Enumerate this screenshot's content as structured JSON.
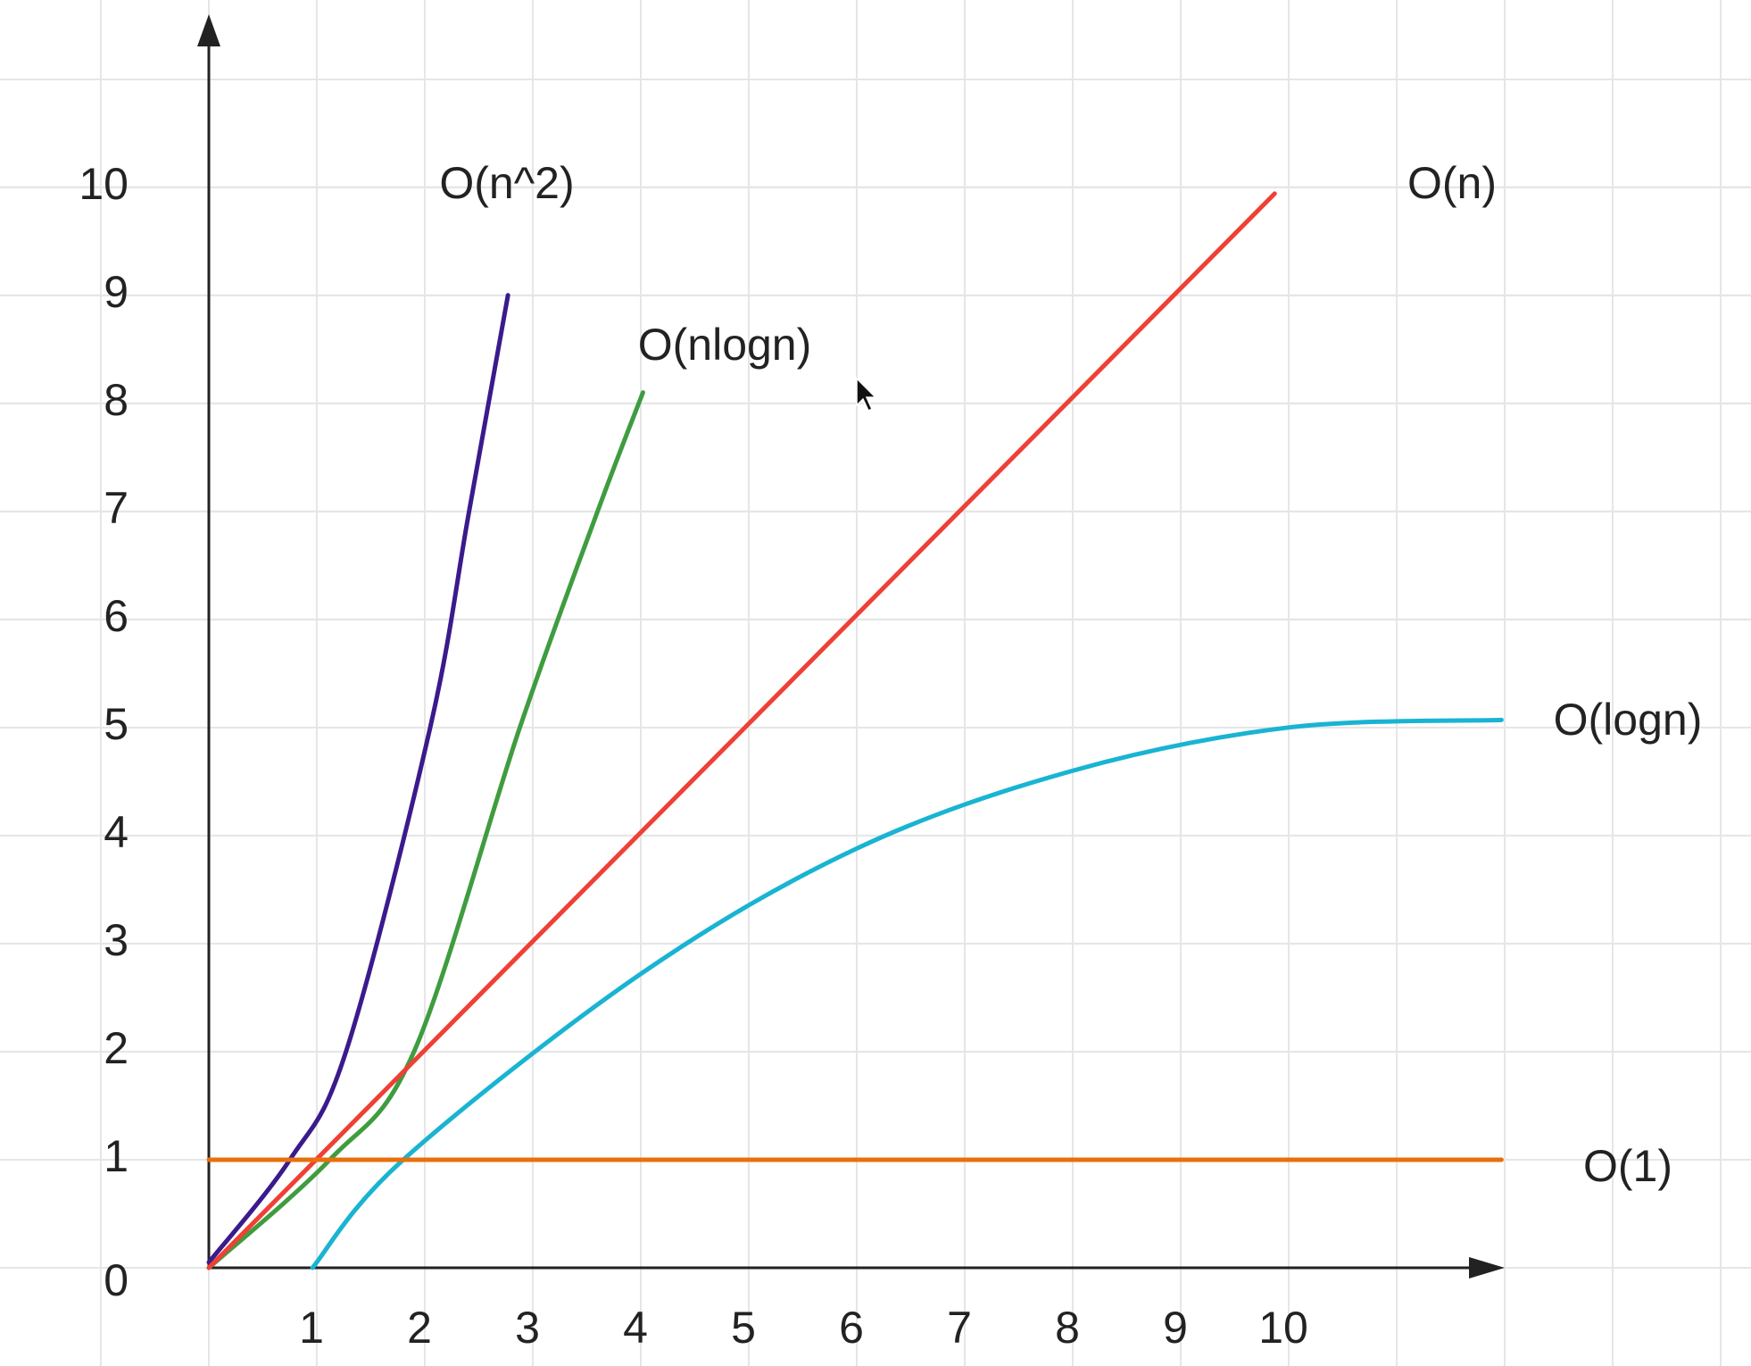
{
  "chart_data": {
    "type": "line",
    "xlim": [
      0,
      12
    ],
    "ylim": [
      0,
      11.6
    ],
    "xticks": [
      1,
      2,
      3,
      4,
      5,
      6,
      7,
      8,
      9,
      10
    ],
    "yticks": [
      0,
      1,
      2,
      3,
      4,
      5,
      6,
      7,
      8,
      9,
      10
    ],
    "grid": true,
    "series": [
      {
        "name": "O(n^2)",
        "color": "#3b1a8c",
        "x": [
          0,
          0.75,
          1.27,
          2.05,
          2.41,
          2.77
        ],
        "values": [
          0.05,
          1,
          2,
          5,
          7,
          9
        ]
      },
      {
        "name": "O(nlogn)",
        "color": "#3f9c3f",
        "x": [
          0,
          1.12,
          1.9,
          2.88,
          3.6,
          4.02
        ],
        "values": [
          0,
          1,
          2,
          5,
          7,
          8.1
        ]
      },
      {
        "name": "O(n)",
        "color": "#ef4035",
        "x": [
          0,
          9.87
        ],
        "values": [
          0,
          9.94
        ]
      },
      {
        "name": "O(logn)",
        "color": "#19b4d2",
        "x": [
          0.96,
          1.8,
          4,
          6,
          8,
          10,
          11.97
        ],
        "values": [
          0,
          1,
          2.72,
          3.88,
          4.6,
          5,
          5.07
        ]
      },
      {
        "name": "O(1)",
        "color": "#e8700c",
        "x": [
          0,
          11.97
        ],
        "values": [
          1,
          1
        ]
      }
    ]
  }
}
